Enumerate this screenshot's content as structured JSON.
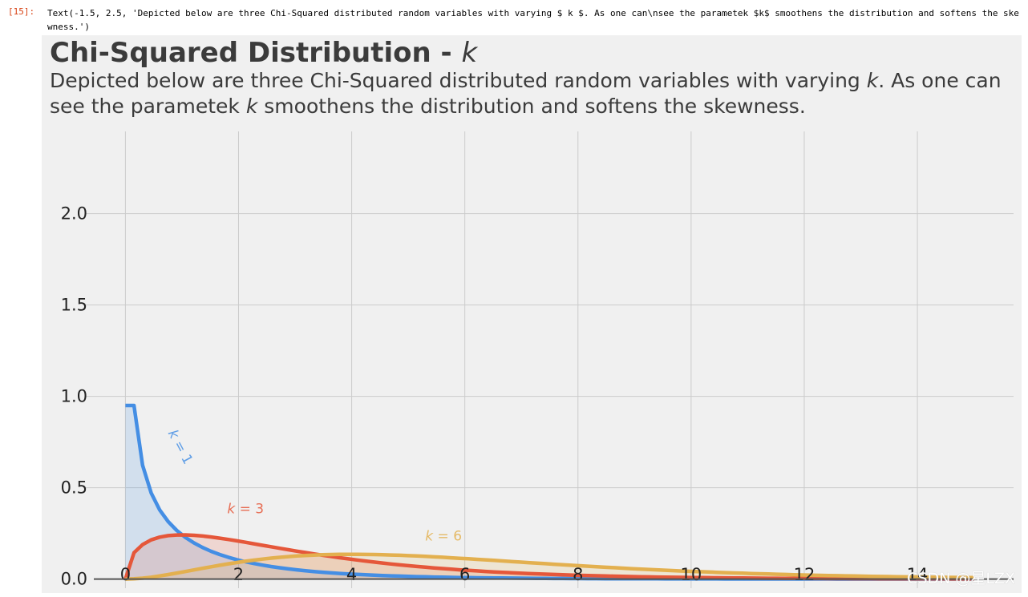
{
  "cell": {
    "prompt": "[15]:",
    "output_text": "Text(-1.5, 2.5, 'Depicted below are three Chi-Squared distributed random variables with varying $ k $. As one can\\nsee the parametek $k$ smoothens the distribution and softens the skewness.')"
  },
  "watermark": "CSDN @星LZX",
  "colors": {
    "k1": "#448ee4",
    "k3": "#e5573a",
    "k6": "#e3b04f",
    "figure_bg": "#f0f0f0",
    "grid": "#cbcbcb"
  },
  "chart_data": {
    "type": "line",
    "title_main": "Chi-Squared Distribution - ",
    "title_symbol": "k",
    "subtitle_lines": [
      [
        "Depicted below are three Chi-Squared distributed random variables with varying ",
        "k",
        ". As one can"
      ],
      [
        "see the parametek ",
        "k",
        " smoothens the distribution and softens the skewness."
      ]
    ],
    "xlim": [
      -0.7,
      15.7
    ],
    "ylim": [
      -0.05,
      2.45
    ],
    "xticks": [
      0,
      2,
      4,
      6,
      8,
      10,
      12,
      14
    ],
    "xtick_labels": [
      "0",
      "2",
      "4",
      "6",
      "8",
      "10",
      "12",
      "14"
    ],
    "yticks": [
      0.0,
      0.5,
      1.0,
      1.5,
      2.0
    ],
    "ytick_labels": [
      "0.0",
      "0.5",
      "1.0",
      "1.5",
      "2.0"
    ],
    "grid": true,
    "x_domain": [
      0,
      15
    ],
    "series": [
      {
        "name": "k = 1",
        "k": 1,
        "label_pre": "k",
        "label_post": " = 1",
        "label_x": 0.75,
        "label_y": 0.8,
        "label_rotation": -62,
        "filled": true
      },
      {
        "name": "k = 3",
        "k": 3,
        "label_pre": "k",
        "label_post": " = 3",
        "label_x": 1.8,
        "label_y": 0.36,
        "label_rotation": 0,
        "filled": true
      },
      {
        "name": "k = 6",
        "k": 6,
        "label_pre": "k",
        "label_post": " = 6",
        "label_x": 5.3,
        "label_y": 0.21,
        "label_rotation": 0,
        "filled": true
      }
    ]
  }
}
